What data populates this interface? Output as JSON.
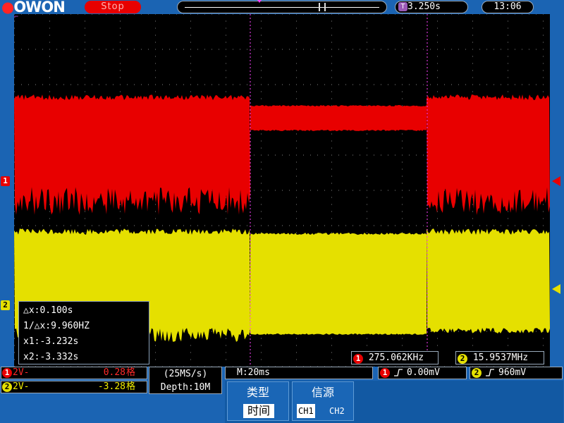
{
  "header": {
    "logo": "OWON",
    "run_status": "Stop",
    "trigger_badge": "T",
    "trigger_time": "3.250s",
    "clock": "13:06"
  },
  "markers": {
    "ch1": "1",
    "ch2": "2"
  },
  "cursor_info": {
    "dx": "△x:0.100s",
    "inv_dx": "1/△x:9.960HZ",
    "x1": "x1:-3.232s",
    "x2": "x2:-3.332s"
  },
  "frequency": {
    "ch1": "275.062KHz",
    "ch2": "15.9537MHz"
  },
  "channels": [
    {
      "badge": "1",
      "scale": "2V-",
      "position": "0.28",
      "unit": "格"
    },
    {
      "badge": "2",
      "scale": "2V-",
      "position": "-3.28",
      "unit": "格"
    }
  ],
  "acquisition": {
    "rate": "(25MS/s)",
    "depth": "Depth:10M"
  },
  "timebase": "M:20ms",
  "trigger": [
    {
      "badge": "1",
      "level": "0.00mV"
    },
    {
      "badge": "2",
      "level": "960mV"
    }
  ],
  "menu": {
    "type_title": "类型",
    "type_value": "时间",
    "source_title": "信源",
    "source_ch1": "CH1",
    "source_ch2": "CH2"
  },
  "colors": {
    "background": "#1b64b3",
    "ch1": "#e80000",
    "ch2": "#e5e000",
    "cursor": "#ff40ff"
  }
}
